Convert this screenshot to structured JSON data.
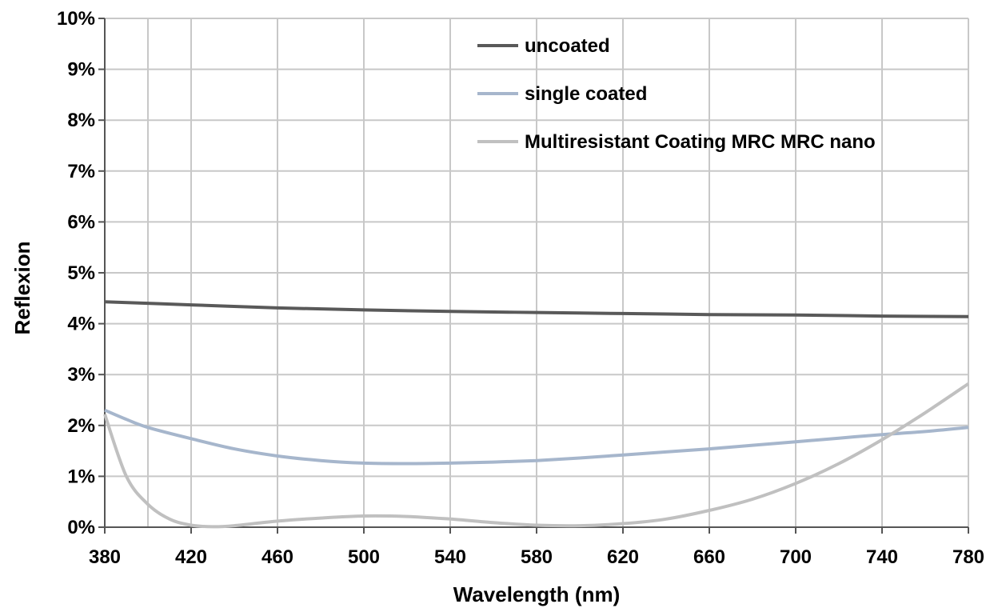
{
  "chart_data": {
    "type": "line",
    "title": "",
    "xlabel": "Wavelength (nm)",
    "ylabel": "Reflexion",
    "xlim": [
      380,
      780
    ],
    "ylim": [
      0,
      10
    ],
    "x_ticks": [
      380,
      420,
      460,
      500,
      540,
      580,
      620,
      660,
      700,
      740,
      780
    ],
    "x_tick_labels": [
      "380",
      "420",
      "460",
      "500",
      "540",
      "580",
      "620",
      "660",
      "700",
      "740",
      "780"
    ],
    "y_ticks": [
      0,
      1,
      2,
      3,
      4,
      5,
      6,
      7,
      8,
      9,
      10
    ],
    "y_tick_labels": [
      "0%",
      "1%",
      "2%",
      "3%",
      "4%",
      "5%",
      "6%",
      "7%",
      "8%",
      "9%",
      "10%"
    ],
    "x_minor_gridlines": [
      400
    ],
    "grid": true,
    "legend_position": "top-right",
    "series": [
      {
        "name": "uncoated",
        "color": "#595959",
        "x": [
          380,
          420,
          460,
          500,
          540,
          580,
          620,
          660,
          700,
          740,
          780
        ],
        "y": [
          4.43,
          4.37,
          4.31,
          4.27,
          4.24,
          4.22,
          4.2,
          4.18,
          4.17,
          4.15,
          4.14
        ]
      },
      {
        "name": "single coated",
        "color": "#a6b6cc",
        "x": [
          380,
          390,
          400,
          420,
          440,
          460,
          480,
          500,
          520,
          540,
          560,
          580,
          600,
          620,
          640,
          660,
          680,
          700,
          720,
          740,
          760,
          780
        ],
        "y": [
          2.3,
          2.12,
          1.96,
          1.74,
          1.54,
          1.4,
          1.31,
          1.26,
          1.25,
          1.26,
          1.28,
          1.31,
          1.36,
          1.42,
          1.48,
          1.54,
          1.61,
          1.68,
          1.75,
          1.82,
          1.88,
          1.96
        ]
      },
      {
        "name": "Multiresistant Coating MRC MRC nano",
        "color": "#c0c0c0",
        "x": [
          380,
          390,
          400,
          410,
          420,
          430,
          440,
          460,
          480,
          500,
          520,
          540,
          560,
          580,
          600,
          620,
          640,
          660,
          680,
          700,
          720,
          740,
          760,
          780
        ],
        "y": [
          2.22,
          1.0,
          0.45,
          0.16,
          0.04,
          0.01,
          0.03,
          0.12,
          0.18,
          0.22,
          0.21,
          0.16,
          0.09,
          0.04,
          0.03,
          0.07,
          0.16,
          0.33,
          0.55,
          0.86,
          1.25,
          1.72,
          2.25,
          2.82
        ]
      }
    ]
  }
}
